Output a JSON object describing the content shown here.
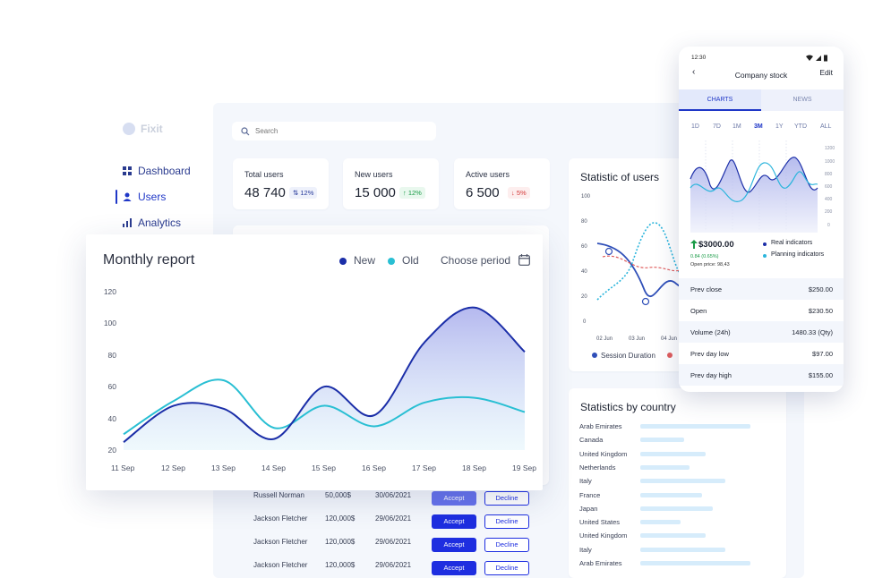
{
  "app": {
    "logo_text": "Fixit"
  },
  "sidebar": {
    "items": [
      {
        "label": "Dashboard",
        "icon": "dashboard-icon"
      },
      {
        "label": "Users",
        "icon": "user-icon"
      },
      {
        "label": "Analytics",
        "icon": "analytics-icon"
      }
    ],
    "active": "Users"
  },
  "search": {
    "placeholder": "Search"
  },
  "stats": [
    {
      "label": "Total users",
      "value": "48 740",
      "badge": "12%",
      "badge_kind": "neutral"
    },
    {
      "label": "New users",
      "value": "15 000",
      "badge": "12%",
      "badge_kind": "up"
    },
    {
      "label": "Active users",
      "value": "6 500",
      "badge": "5%",
      "badge_kind": "down"
    }
  ],
  "monthly_report": {
    "title": "Monthly report",
    "legend": {
      "new": "New",
      "old": "Old"
    },
    "period_label": "Choose period",
    "colors": {
      "new": "#1b2ea8",
      "old": "#29bfd3"
    }
  },
  "statistic_users": {
    "title": "Statistic of users",
    "legend": [
      "Session Duration"
    ],
    "y_ticks": [
      "100",
      "80",
      "60",
      "40",
      "20",
      "0"
    ],
    "x_ticks": [
      "02 Jun",
      "03 Jun",
      "04 Jun"
    ]
  },
  "statistics_country": {
    "title": "Statistics by country",
    "countries": [
      {
        "name": "Arab Emirates",
        "share": 0.88
      },
      {
        "name": "Canada",
        "share": 0.35
      },
      {
        "name": "United Kingdom",
        "share": 0.52
      },
      {
        "name": "Netherlands",
        "share": 0.39
      },
      {
        "name": "Italy",
        "share": 0.68
      },
      {
        "name": "France",
        "share": 0.49
      },
      {
        "name": "Japan",
        "share": 0.58
      },
      {
        "name": "United States",
        "share": 0.32
      },
      {
        "name": "United Kingdom",
        "share": 0.52
      },
      {
        "name": "Italy",
        "share": 0.68
      },
      {
        "name": "Arab Emirates",
        "share": 0.88
      }
    ]
  },
  "transactions": {
    "accept_label": "Accept",
    "decline_label": "Decline",
    "rows": [
      {
        "name": "Russell Norman",
        "amount": "50,000$",
        "date": "30/06/2021"
      },
      {
        "name": "Jackson Fletcher",
        "amount": "120,000$",
        "date": "29/06/2021"
      },
      {
        "name": "Jackson Fletcher",
        "amount": "120,000$",
        "date": "29/06/2021"
      },
      {
        "name": "Jackson Fletcher",
        "amount": "120,000$",
        "date": "29/06/2021"
      }
    ]
  },
  "phone": {
    "time": "12:30",
    "title": "Company stock",
    "edit_label": "Edit",
    "tabs": [
      "CHARTS",
      "NEWS"
    ],
    "ranges": [
      "1D",
      "7D",
      "1M",
      "3M",
      "1Y",
      "YTD",
      "ALL"
    ],
    "active_range": "3M",
    "y_ticks": [
      "1200",
      "1000",
      "800",
      "600",
      "400",
      "200",
      "0"
    ],
    "price": "$3000.00",
    "change": "0.84 (0.65%)",
    "open_price": "Open price: 98,43",
    "legend": {
      "real": "Real indicators",
      "planning": "Planning indicators"
    },
    "rows": [
      {
        "label": "Prev close",
        "value": "$250.00"
      },
      {
        "label": "Open",
        "value": "$230.50"
      },
      {
        "label": "Volume (24h)",
        "value": "1480.33 (Qty)"
      },
      {
        "label": "Prev day low",
        "value": "$97.00"
      },
      {
        "label": "Prev day high",
        "value": "$155.00"
      }
    ]
  },
  "chart_data": [
    {
      "type": "area",
      "title": "Monthly report",
      "categories": [
        "11 Sep",
        "12 Sep",
        "13 Sep",
        "14 Sep",
        "15 Sep",
        "16 Sep",
        "17 Sep",
        "18 Sep",
        "19 Sep"
      ],
      "y_ticks": [
        120,
        100,
        80,
        60,
        40,
        20
      ],
      "ylim": [
        20,
        120
      ],
      "series": [
        {
          "name": "New",
          "values": [
            25,
            48,
            46,
            27,
            60,
            42,
            88,
            110,
            82
          ]
        },
        {
          "name": "Old",
          "values": [
            30,
            51,
            64,
            34,
            48,
            35,
            50,
            53,
            44
          ]
        }
      ]
    }
  ]
}
